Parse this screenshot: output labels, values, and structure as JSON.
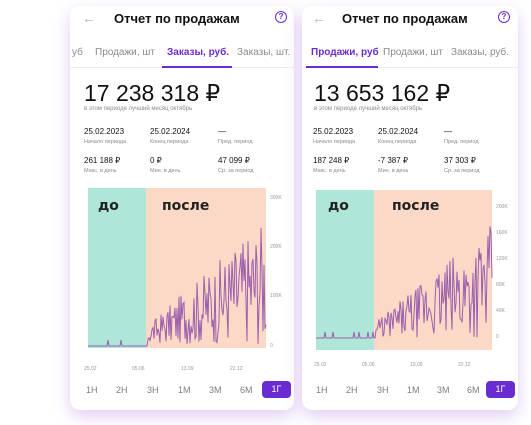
{
  "left": {
    "title": "Отчет по продажам",
    "tabs": [
      "уб",
      "Продажи, шт",
      "Заказы, руб.",
      "Заказы, шт."
    ],
    "active_tab": 2,
    "big_value": "17 238 318 ₽",
    "note": "в этом периоде лучший месяц октябрь",
    "stats": [
      {
        "value": "25.02.2023",
        "label": "Начало периода"
      },
      {
        "value": "25.02.2024",
        "label": "Конец периода"
      },
      {
        "value": "—",
        "label": "Пред. период"
      },
      {
        "value": "261 188 ₽",
        "label": "Макс. в день"
      },
      {
        "value": "0 ₽",
        "label": "Мин. в день"
      },
      {
        "value": "47 099 ₽",
        "label": "Ср. за период"
      }
    ],
    "overlay_before": "до",
    "overlay_after": "после",
    "y_ticks": [
      "300K",
      "200K",
      "100K",
      "0"
    ],
    "x_ticks": [
      "25.02",
      "05.06",
      "13.09",
      "22.12"
    ],
    "periods": [
      "1Н",
      "2Н",
      "3Н",
      "1М",
      "3М",
      "6М",
      "1Г"
    ],
    "active_period": 6
  },
  "right": {
    "title": "Отчет по продажам",
    "tabs": [
      "Продажи, руб",
      "Продажи, шт",
      "Заказы, руб."
    ],
    "active_tab": 0,
    "big_value": "13 653 162 ₽",
    "note": "в этом периоде лучший месяц октябрь",
    "stats": [
      {
        "value": "25.02.2023",
        "label": "Начало периода"
      },
      {
        "value": "25.02.2024",
        "label": "Конец периода"
      },
      {
        "value": "—",
        "label": "Пред. период"
      },
      {
        "value": "187 248 ₽",
        "label": "Макс. в день"
      },
      {
        "value": "-7 387 ₽",
        "label": "Мин. в день"
      },
      {
        "value": "37 303 ₽",
        "label": "Ср. за период"
      }
    ],
    "overlay_before": "до",
    "overlay_after": "после",
    "y_ticks": [
      "200K",
      "160K",
      "120K",
      "80K",
      "40K",
      "0"
    ],
    "x_ticks": [
      "25.02",
      "05.06",
      "13.09",
      "22.12"
    ],
    "periods": [
      "1Н",
      "2Н",
      "3Н",
      "1М",
      "3М",
      "6М",
      "1Г"
    ],
    "active_period": 6
  },
  "colors": {
    "accent": "#6a2bd1",
    "before_zone": "#aee6d8",
    "after_zone": "#fcd9c6",
    "line": "#9c5fae"
  }
}
